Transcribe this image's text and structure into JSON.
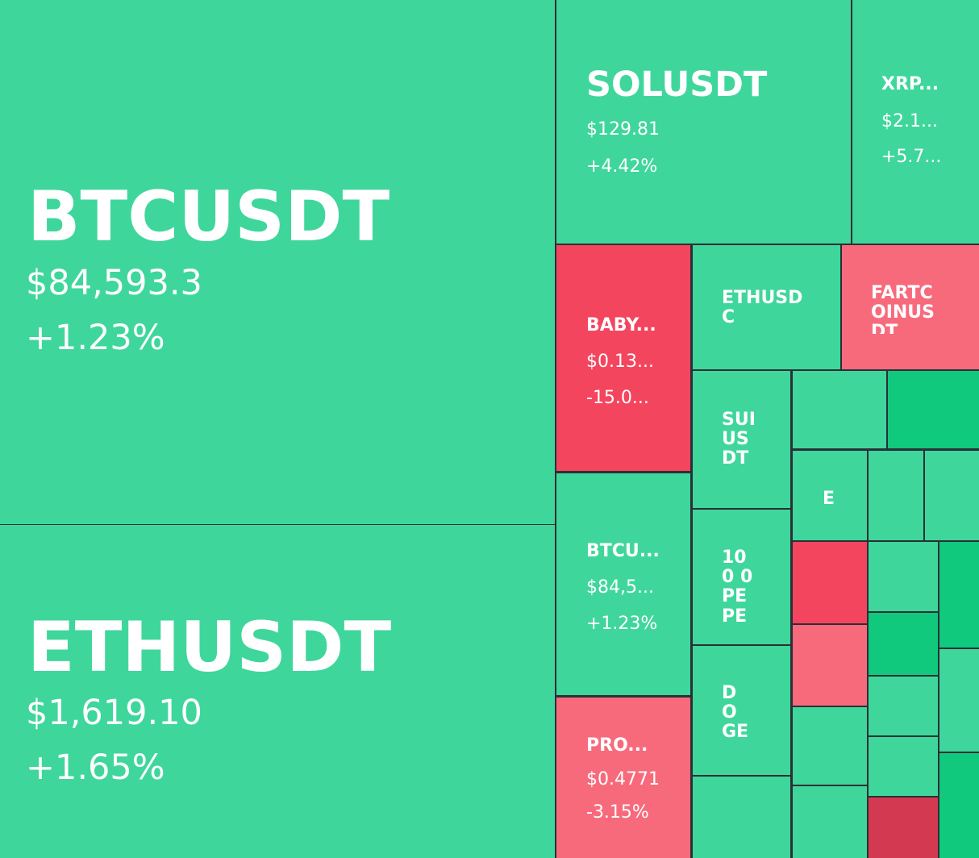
{
  "tiles": {
    "btc": {
      "symbol": "BTCUSDT",
      "price": "$84,593.3",
      "change": "+1.23%"
    },
    "eth": {
      "symbol": "ETHUSDT",
      "price": "$1,619.10",
      "change": "+1.65%"
    },
    "sol": {
      "symbol": "SOLUSDT",
      "price": "$129.81",
      "change": "+4.42%"
    },
    "xrp": {
      "symbol": "XRP...",
      "price": "$2.1...",
      "change": "+5.7..."
    },
    "baby": {
      "symbol": "BABY...",
      "price": "$0.13...",
      "change": "-15.0..."
    },
    "ethusdc": {
      "symbol": "ETHUSD C"
    },
    "fartcoin": {
      "symbol": "FARTC OINUS DT"
    },
    "sui": {
      "symbol": "SUI US DT"
    },
    "btcperp": {
      "symbol": "BTCU...",
      "price": "$84,5...",
      "change": "+1.23%"
    },
    "pepe": {
      "symbol": "100 0PE PE"
    },
    "doge": {
      "symbol": "DO GE US"
    },
    "pro": {
      "symbol": "PRO...",
      "price": "$0.4771",
      "change": "-3.15%"
    },
    "e": {
      "symbol": "E"
    }
  }
}
